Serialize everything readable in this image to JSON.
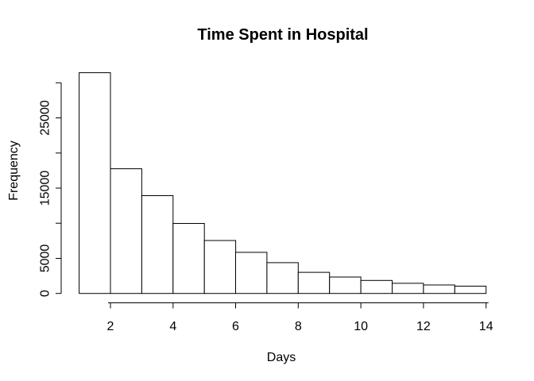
{
  "chart_data": {
    "type": "bar",
    "subtype": "histogram",
    "title": "Time Spent in Hospital",
    "xlabel": "Days",
    "ylabel": "Frequency",
    "bin_edges": [
      1,
      2,
      3,
      4,
      5,
      6,
      7,
      8,
      9,
      10,
      11,
      12,
      13,
      14
    ],
    "counts": [
      31432,
      17756,
      13924,
      9966,
      7539,
      5859,
      4391,
      3002,
      2342,
      1855,
      1448,
      1210,
      1042
    ],
    "x_tick_values": [
      2,
      4,
      6,
      8,
      10,
      12,
      14
    ],
    "x_tick_labels": [
      "2",
      "4",
      "6",
      "8",
      "10",
      "12",
      "14"
    ],
    "y_tick_values": [
      0,
      5000,
      10000,
      15000,
      20000,
      25000,
      30000
    ],
    "y_tick_labels": [
      "0",
      "5000",
      "",
      "15000",
      "",
      "25000",
      ""
    ],
    "xlim": [
      1,
      14
    ],
    "ylim": [
      0,
      30000
    ],
    "grid": false,
    "legend": false,
    "bar_fill": "#ffffff",
    "bar_stroke": "#000000",
    "axis_color": "#000000",
    "text_color": "#000000",
    "background": "#ffffff"
  }
}
